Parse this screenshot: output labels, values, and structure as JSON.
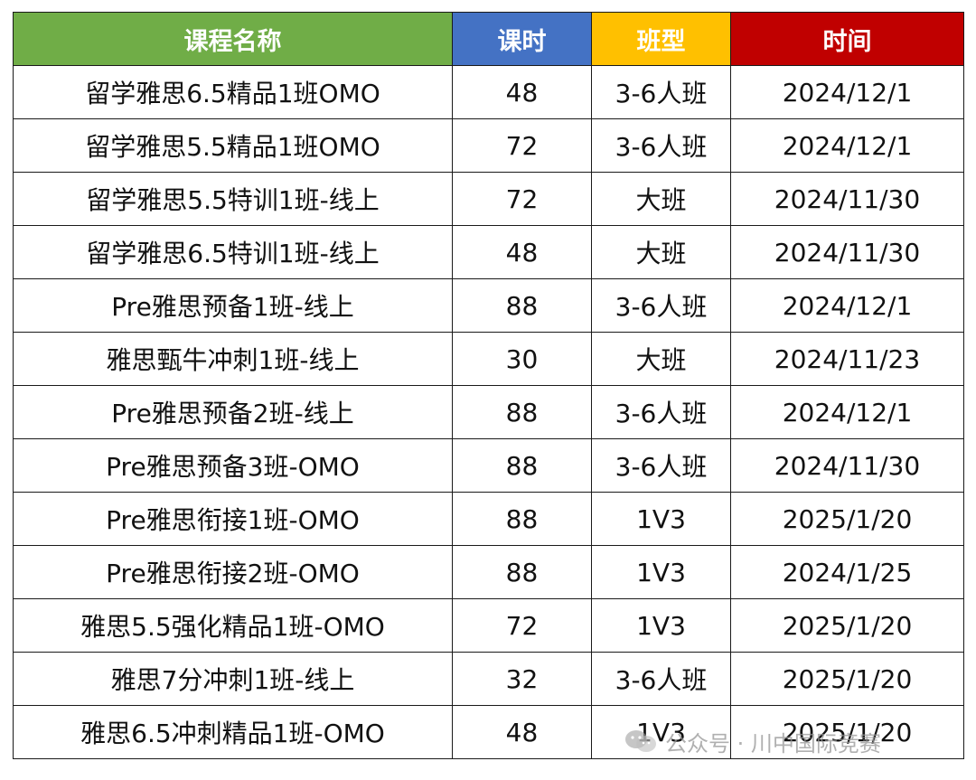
{
  "table": {
    "headers": {
      "name": "课程名称",
      "hours": "课时",
      "type": "班型",
      "date": "时间"
    },
    "header_colors": {
      "name": "#70ad47",
      "hours": "#4472c4",
      "type": "#ffc000",
      "date": "#c00000"
    },
    "rows": [
      {
        "name": "留学雅思6.5精品1班OMO",
        "hours": "48",
        "type": "3-6人班",
        "date": "2024/12/1"
      },
      {
        "name": "留学雅思5.5精品1班OMO",
        "hours": "72",
        "type": "3-6人班",
        "date": "2024/12/1"
      },
      {
        "name": "留学雅思5.5特训1班-线上",
        "hours": "72",
        "type": "大班",
        "date": "2024/11/30"
      },
      {
        "name": "留学雅思6.5特训1班-线上",
        "hours": "48",
        "type": "大班",
        "date": "2024/11/30"
      },
      {
        "name": "Pre雅思预备1班-线上",
        "hours": "88",
        "type": "3-6人班",
        "date": "2024/12/1"
      },
      {
        "name": "雅思甄牛冲刺1班-线上",
        "hours": "30",
        "type": "大班",
        "date": "2024/11/23"
      },
      {
        "name": "Pre雅思预备2班-线上",
        "hours": "88",
        "type": "3-6人班",
        "date": "2024/12/1"
      },
      {
        "name": "Pre雅思预备3班-OMO",
        "hours": "88",
        "type": "3-6人班",
        "date": "2024/11/30"
      },
      {
        "name": "Pre雅思衔接1班-OMO",
        "hours": "88",
        "type": "1V3",
        "date": "2025/1/20"
      },
      {
        "name": "Pre雅思衔接2班-OMO",
        "hours": "88",
        "type": "1V3",
        "date": "2024/1/25"
      },
      {
        "name": "雅思5.5强化精品1班-OMO",
        "hours": "72",
        "type": "1V3",
        "date": "2025/1/20"
      },
      {
        "name": "雅思7分冲刺1班-线上",
        "hours": "32",
        "type": "3-6人班",
        "date": "2025/1/20"
      },
      {
        "name": "雅思6.5冲刺精品1班-OMO",
        "hours": "48",
        "type": "1V3",
        "date": "2025/1/20"
      }
    ]
  },
  "watermark": {
    "icon": "wechat-icon",
    "text": "公众号 · 川中国际竞赛"
  }
}
